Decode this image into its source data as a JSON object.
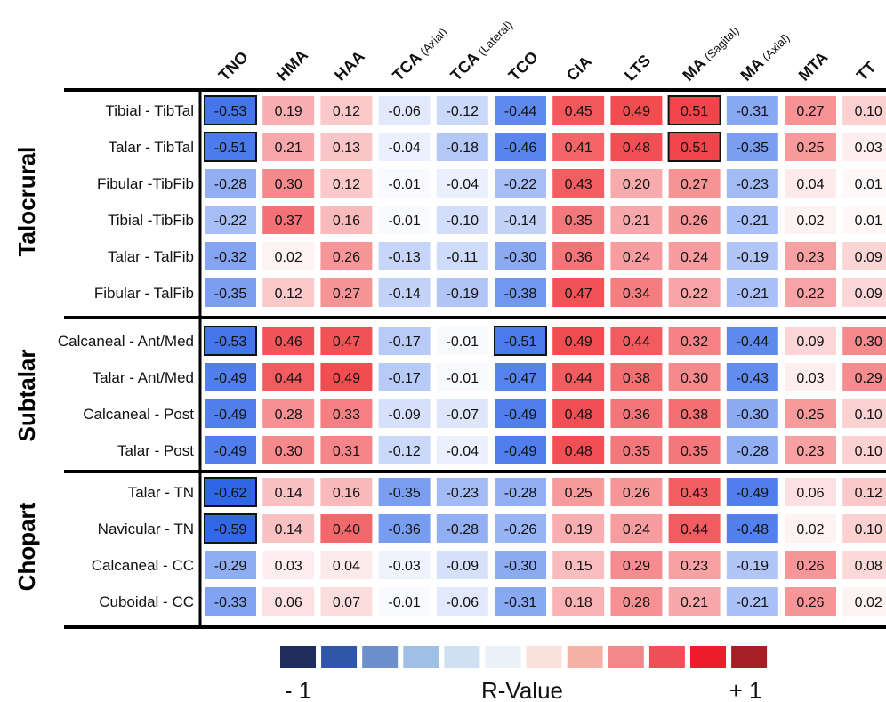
{
  "chart_data": {
    "type": "heatmap",
    "columns": [
      {
        "label": "TNO",
        "sub": ""
      },
      {
        "label": "HMA",
        "sub": ""
      },
      {
        "label": "HAA",
        "sub": ""
      },
      {
        "label": "TCA",
        "sub": "(Axial)"
      },
      {
        "label": "TCA",
        "sub": "(Lateral)"
      },
      {
        "label": "TCO",
        "sub": ""
      },
      {
        "label": "CIA",
        "sub": ""
      },
      {
        "label": "LTS",
        "sub": ""
      },
      {
        "label": "MA",
        "sub": "(Sagital)"
      },
      {
        "label": "MA",
        "sub": "(Axial)"
      },
      {
        "label": "MTA",
        "sub": ""
      },
      {
        "label": "TT",
        "sub": ""
      }
    ],
    "groups": [
      {
        "name": "Talocrural",
        "rows": [
          {
            "label": "Tibial - TibTal",
            "values": [
              -0.53,
              0.19,
              0.12,
              -0.06,
              -0.12,
              -0.44,
              0.45,
              0.49,
              0.51,
              -0.31,
              0.27,
              0.1
            ],
            "boxed": [
              0,
              8
            ]
          },
          {
            "label": "Talar - TibTal",
            "values": [
              -0.51,
              0.21,
              0.13,
              -0.04,
              -0.18,
              -0.46,
              0.41,
              0.48,
              0.51,
              -0.35,
              0.25,
              0.03
            ],
            "boxed": [
              0,
              8
            ]
          },
          {
            "label": "Fibular -TibFib",
            "values": [
              -0.28,
              0.3,
              0.12,
              -0.01,
              -0.04,
              -0.22,
              0.43,
              0.2,
              0.27,
              -0.23,
              0.04,
              0.01
            ],
            "boxed": []
          },
          {
            "label": "Tibial -TibFib",
            "values": [
              -0.22,
              0.37,
              0.16,
              -0.01,
              -0.1,
              -0.14,
              0.35,
              0.21,
              0.26,
              -0.21,
              0.02,
              0.01
            ],
            "boxed": []
          },
          {
            "label": "Talar - TalFib",
            "values": [
              -0.32,
              0.02,
              0.26,
              -0.13,
              -0.11,
              -0.3,
              0.36,
              0.24,
              0.24,
              -0.19,
              0.23,
              0.09
            ],
            "boxed": []
          },
          {
            "label": "Fibular - TalFib",
            "values": [
              -0.35,
              0.12,
              0.27,
              -0.14,
              -0.19,
              -0.38,
              0.47,
              0.34,
              0.22,
              -0.21,
              0.22,
              0.09
            ],
            "boxed": []
          }
        ]
      },
      {
        "name": "Subtalar",
        "rows": [
          {
            "label": "Calcaneal - Ant/Med",
            "values": [
              -0.53,
              0.46,
              0.47,
              -0.17,
              -0.01,
              -0.51,
              0.49,
              0.44,
              0.32,
              -0.44,
              0.09,
              0.3
            ],
            "boxed": [
              0,
              5
            ]
          },
          {
            "label": "Talar - Ant/Med",
            "values": [
              -0.49,
              0.44,
              0.49,
              -0.17,
              -0.01,
              -0.47,
              0.44,
              0.38,
              0.3,
              -0.43,
              0.03,
              0.29
            ],
            "boxed": []
          },
          {
            "label": "Calcaneal - Post",
            "values": [
              -0.49,
              0.28,
              0.33,
              -0.09,
              -0.07,
              -0.49,
              0.48,
              0.36,
              0.38,
              -0.3,
              0.25,
              0.1
            ],
            "boxed": []
          },
          {
            "label": "Talar - Post",
            "values": [
              -0.49,
              0.3,
              0.31,
              -0.12,
              -0.04,
              -0.49,
              0.48,
              0.35,
              0.35,
              -0.28,
              0.23,
              0.1
            ],
            "boxed": []
          }
        ]
      },
      {
        "name": "Chopart",
        "rows": [
          {
            "label": "Talar - TN",
            "values": [
              -0.62,
              0.14,
              0.16,
              -0.35,
              -0.23,
              -0.28,
              0.25,
              0.26,
              0.43,
              -0.49,
              0.06,
              0.12
            ],
            "boxed": [
              0
            ]
          },
          {
            "label": "Navicular - TN",
            "values": [
              -0.59,
              0.14,
              0.4,
              -0.36,
              -0.28,
              -0.26,
              0.19,
              0.24,
              0.44,
              -0.48,
              0.02,
              0.1
            ],
            "boxed": [
              0
            ]
          },
          {
            "label": "Calcaneal - CC",
            "values": [
              -0.29,
              0.03,
              0.04,
              -0.03,
              -0.09,
              -0.3,
              0.15,
              0.29,
              0.23,
              -0.19,
              0.26,
              0.08
            ],
            "boxed": []
          },
          {
            "label": "Cuboidal - CC",
            "values": [
              -0.33,
              0.06,
              0.07,
              -0.01,
              -0.06,
              -0.31,
              0.18,
              0.28,
              0.21,
              -0.21,
              0.26,
              0.02
            ],
            "boxed": []
          }
        ]
      }
    ],
    "legend": {
      "min_label": "- 1",
      "title": "R-Value",
      "max_label": "+ 1",
      "swatches": [
        "#1f2d5e",
        "#2f56a8",
        "#6d8fcb",
        "#9fc0e4",
        "#cfe0f2",
        "#eaf1f9",
        "#fbe1dc",
        "#f5b2a5",
        "#f08987",
        "#ef4f56",
        "#ec1c2b",
        "#a61f24"
      ]
    },
    "colors": {
      "neg_full": "#2f66e8",
      "pos_full": "#ee2a2f",
      "neutral": "#ffffff",
      "box_border": "#111111"
    },
    "vrange": [
      -1,
      1
    ]
  }
}
